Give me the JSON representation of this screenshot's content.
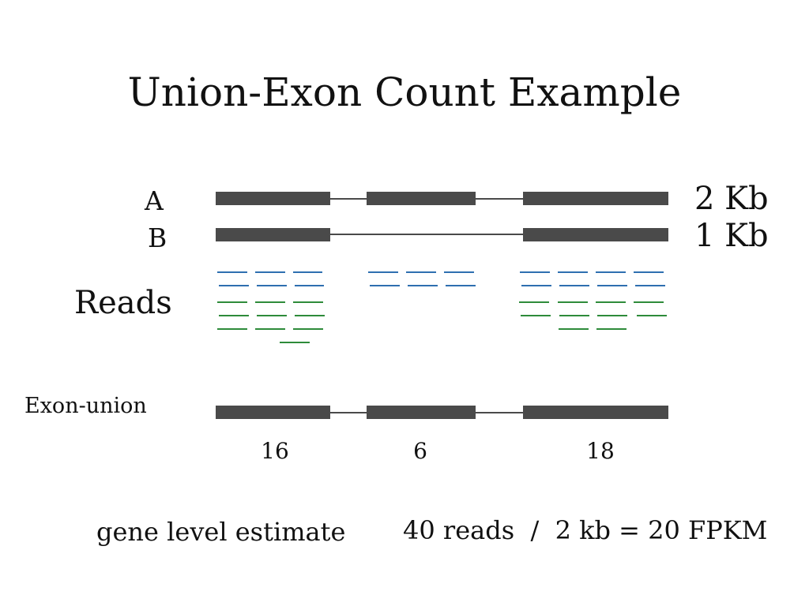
{
  "title": "Union-Exon Count Example",
  "isoforms": [
    {
      "name": "A",
      "size": "2 Kb"
    },
    {
      "name": "B",
      "size": "1 Kb"
    }
  ],
  "reads_label": "Reads",
  "union_label": "Exon-union",
  "counts": [
    "16",
    "6",
    "18"
  ],
  "estimate_label": "gene level estimate",
  "estimate_formula": "40 reads  /  2 kb = 20 FPKM",
  "colors": {
    "exon": "#4a4a4a",
    "intron": "#4a4a4a",
    "read_blue": "#2e6fb0",
    "read_green": "#2e8b3a"
  }
}
